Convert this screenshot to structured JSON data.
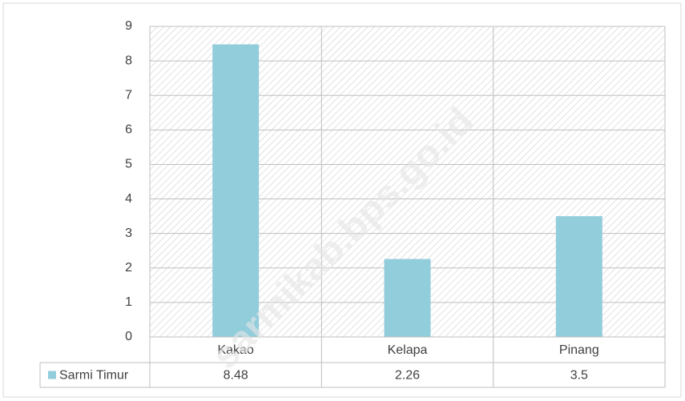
{
  "chart_data": {
    "type": "bar",
    "categories": [
      "Kakao",
      "Kelapa",
      "Pinang"
    ],
    "series": [
      {
        "name": "Sarmi Timur",
        "color": "#92cddc",
        "values": [
          8.48,
          2.26,
          3.5
        ]
      }
    ],
    "ylim": [
      0,
      9
    ],
    "yticks": [
      0,
      1,
      2,
      3,
      4,
      5,
      6,
      7,
      8,
      9
    ],
    "grid": true,
    "watermark": "sarmikab.bps.go.id"
  }
}
